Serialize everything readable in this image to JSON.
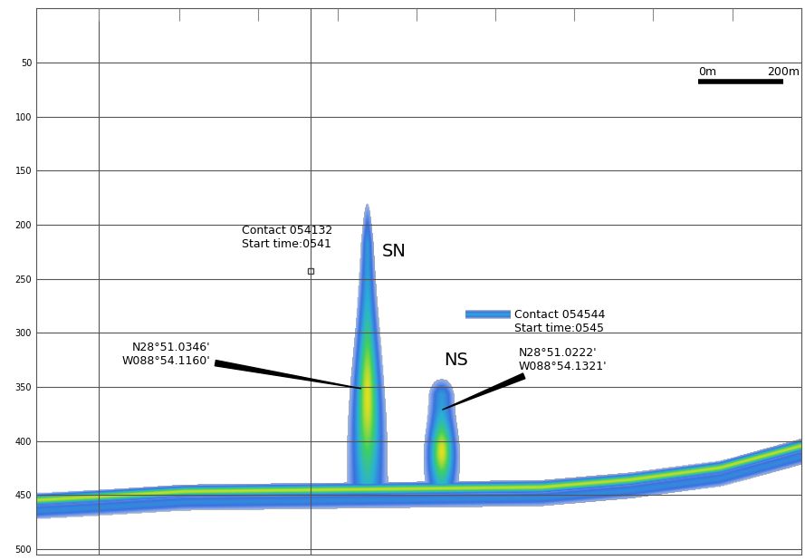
{
  "chart_data": {
    "type": "echogram",
    "xlim": [
      0,
      1800
    ],
    "ylim": [
      505,
      0
    ],
    "yticks": [
      50,
      100,
      150,
      200,
      250,
      300,
      350,
      400,
      450,
      500
    ],
    "xticks": [
      147,
      337,
      522,
      709,
      895,
      1080,
      1267,
      1452,
      1638
    ],
    "tick_labels": "y",
    "grid": true,
    "vertical_lines": [
      147,
      646
    ],
    "seabed": {
      "x": [
        0,
        137,
        347,
        768,
        1189,
        1400,
        1610,
        1798
      ],
      "depth": [
        455,
        452,
        447,
        445,
        443,
        436,
        425,
        405
      ]
    },
    "plumes": [
      {
        "name": "SN",
        "x": 779,
        "top": 172,
        "bottom": 440,
        "top_width": 20,
        "bottom_width": 110,
        "label_x": 842,
        "label_depth": 225,
        "lat": "N28°51.0346'",
        "lon": "W088°54.1160'",
        "point_x": 770,
        "point_depth": 352,
        "text_x": 410,
        "text_depth": 320
      },
      {
        "name": "NS",
        "x": 954,
        "top": 340,
        "bottom": 440,
        "top_width": 70,
        "bottom_width": 90,
        "label_x": 989,
        "label_depth": 325,
        "lat": "N28°51.0222'",
        "lon": "W088°54.1321'",
        "point_x": 951,
        "point_depth": 372,
        "text_x": 1136,
        "text_depth": 325
      }
    ],
    "contacts": [
      {
        "label": "Contact 054132",
        "start": "Start time:0541",
        "x": 646,
        "depth": 243,
        "text_x": 484,
        "text_depth": 212
      },
      {
        "label": "Contact 054544",
        "start": "Start time:0545",
        "x_start": 1010,
        "x_end": 1116,
        "depth": 283,
        "text_x": 1126,
        "text_depth": 290
      }
    ],
    "scale_bar": {
      "start_label": "0m",
      "end_label": "200m",
      "x0": 1558,
      "length": 200,
      "depth": 68
    }
  }
}
